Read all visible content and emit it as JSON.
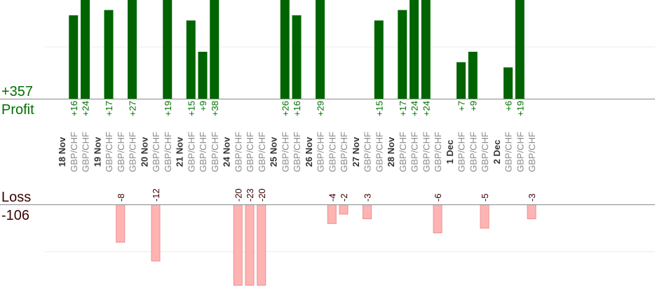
{
  "summary": {
    "profit_total": "+357",
    "profit_label": "Profit",
    "loss_label": "Loss",
    "loss_total": "-106"
  },
  "colors": {
    "profit_bar": "#006400",
    "profit_text": "#007000",
    "loss_bar": "#ffb3b3",
    "loss_bar_border": "#e89090",
    "loss_text": "#3a0000",
    "axis": "#888888",
    "grid": "#e8e8e8"
  },
  "chart_data": {
    "type": "bar",
    "title": "",
    "profit_gridline": 10,
    "loss_gridline": -10,
    "groups": [
      {
        "date": "18 Nov",
        "trades": [
          {
            "symbol": "GBP/CHF",
            "value": 16,
            "label": "+16"
          },
          {
            "symbol": "GBP/CHF",
            "value": 24,
            "label": "+24"
          }
        ]
      },
      {
        "date": "19 Nov",
        "trades": [
          {
            "symbol": "GBP/CHF",
            "value": 17,
            "label": "+17"
          },
          {
            "symbol": "GBP/CHF",
            "value": -8,
            "label": "-8"
          },
          {
            "symbol": "GBP/CHF",
            "value": 27,
            "label": "+27"
          }
        ]
      },
      {
        "date": "20 Nov",
        "trades": [
          {
            "symbol": "GBP/CHF",
            "value": -12,
            "label": "-12"
          },
          {
            "symbol": "GBP/CHF",
            "value": 19,
            "label": "+19"
          }
        ]
      },
      {
        "date": "21 Nov",
        "trades": [
          {
            "symbol": "GBP/CHF",
            "value": 15,
            "label": "+15"
          },
          {
            "symbol": "GBP/CHF",
            "value": 9,
            "label": "+9"
          },
          {
            "symbol": "GBP/CHF",
            "value": 38,
            "label": "+38"
          }
        ]
      },
      {
        "date": "24 Nov",
        "trades": [
          {
            "symbol": "GBP/CHF",
            "value": -20,
            "label": "-20"
          },
          {
            "symbol": "GBP/CHF",
            "value": -23,
            "label": "-23"
          },
          {
            "symbol": "GBP/CHF",
            "value": -20,
            "label": "-20"
          }
        ]
      },
      {
        "date": "25 Nov",
        "trades": [
          {
            "symbol": "GBP/CHF",
            "value": 26,
            "label": "+26"
          },
          {
            "symbol": "GBP/CHF",
            "value": 16,
            "label": "+16"
          }
        ]
      },
      {
        "date": "26 Nov",
        "trades": [
          {
            "symbol": "GBP/CHF",
            "value": 29,
            "label": "+29"
          },
          {
            "symbol": "GBP/CHF",
            "value": -4,
            "label": "-4"
          },
          {
            "symbol": "GBP/CHF",
            "value": -2,
            "label": "-2"
          }
        ]
      },
      {
        "date": "27 Nov",
        "trades": [
          {
            "symbol": "GBP/CHF",
            "value": -3,
            "label": "-3"
          },
          {
            "symbol": "GBP/CHF",
            "value": 15,
            "label": "+15"
          }
        ]
      },
      {
        "date": "28 Nov",
        "trades": [
          {
            "symbol": "GBP/CHF",
            "value": 17,
            "label": "+17"
          },
          {
            "symbol": "GBP/CHF",
            "value": 24,
            "label": "+24"
          },
          {
            "symbol": "GBP/CHF",
            "value": 24,
            "label": "+24"
          },
          {
            "symbol": "GBP/CHF",
            "value": -6,
            "label": "-6"
          }
        ]
      },
      {
        "date": "1 Dec",
        "trades": [
          {
            "symbol": "GBP/CHF",
            "value": 7,
            "label": "+7"
          },
          {
            "symbol": "GBP/CHF",
            "value": 9,
            "label": "+9"
          },
          {
            "symbol": "GBP/CHF",
            "value": -5,
            "label": "-5"
          }
        ]
      },
      {
        "date": "2 Dec",
        "trades": [
          {
            "symbol": "GBP/CHF",
            "value": 6,
            "label": "+6"
          },
          {
            "symbol": "GBP/CHF",
            "value": 19,
            "label": "+19"
          },
          {
            "symbol": "GBP/CHF",
            "value": -3,
            "label": "-3"
          }
        ]
      }
    ]
  }
}
